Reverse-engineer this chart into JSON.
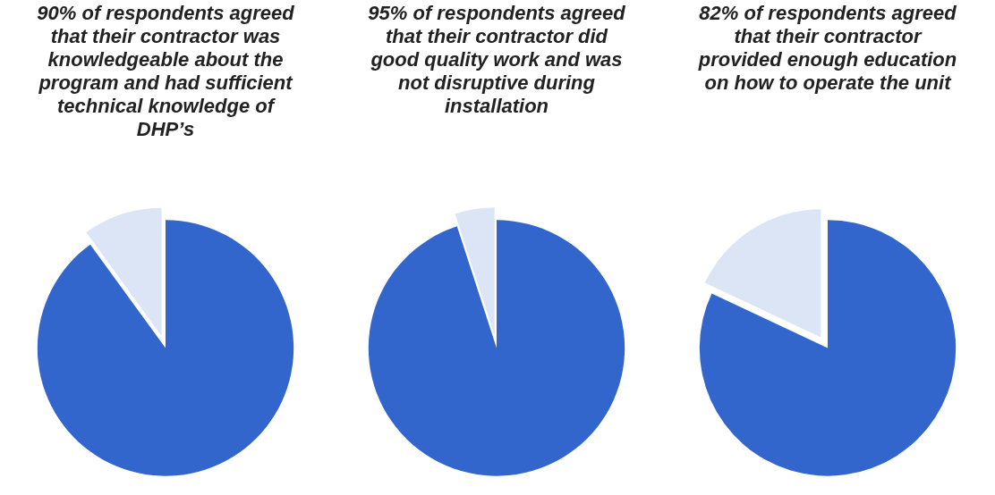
{
  "chart_data": [
    {
      "type": "pie",
      "title": "90% of respondents agreed that their contractor was knowledgeable about the program and had sufficient technical knowledge of DHP’s",
      "categories": [
        null,
        null
      ],
      "values": [
        90,
        10
      ],
      "colors": [
        "#3366cc",
        "#dce5f5"
      ]
    },
    {
      "type": "pie",
      "title": "95% of respondents agreed that their contractor did good quality work and was not disruptive during installation",
      "categories": [
        null,
        null
      ],
      "values": [
        95,
        5
      ],
      "colors": [
        "#3366cc",
        "#dce5f5"
      ]
    },
    {
      "type": "pie",
      "title": "82% of respondents agreed that their contractor provided enough education on how to operate the unit",
      "categories": [
        null,
        null
      ],
      "values": [
        82,
        18
      ],
      "colors": [
        "#3366cc",
        "#dce5f5"
      ]
    }
  ]
}
